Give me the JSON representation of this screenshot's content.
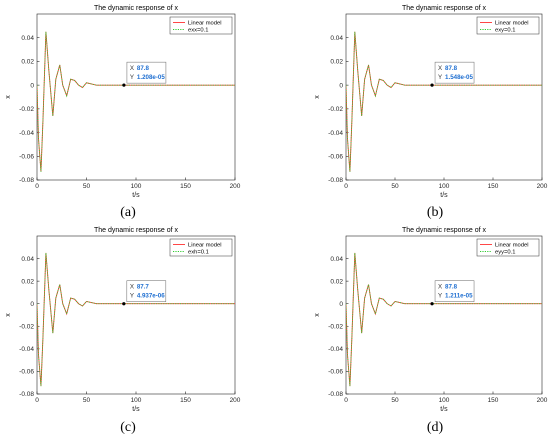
{
  "figure": {
    "background": "#ffffff",
    "axis_color": "#262626",
    "grid": false
  },
  "chart_data": [
    {
      "panel_label": "(a)",
      "type": "line",
      "title": "The dynamic response of x",
      "xlabel": "t/s",
      "ylabel": "x",
      "xlim": [
        0,
        200
      ],
      "ylim": [
        -0.08,
        0.06
      ],
      "xticks": [
        0,
        50,
        100,
        150,
        200
      ],
      "yticks": [
        -0.08,
        -0.06,
        -0.04,
        -0.02,
        0,
        0.02,
        0.04
      ],
      "xtick_labels": [
        "0",
        "50",
        "100",
        "150",
        "200"
      ],
      "ytick_labels": [
        "-0.08",
        "-0.06",
        "-0.04",
        "-0.02",
        "0",
        "0.02",
        "0.04"
      ],
      "legend": {
        "position": "top-right",
        "entries": [
          "Linear model",
          "exx=0.1"
        ]
      },
      "series": [
        {
          "name": "Linear model",
          "color": "#ff3333",
          "style": "solid",
          "x": [
            0,
            1.5,
            4,
            6,
            9,
            12,
            16,
            19,
            23,
            26,
            30,
            34,
            38,
            42,
            46,
            50,
            55,
            60,
            70,
            80,
            87.8,
            100,
            150,
            200
          ],
          "y": [
            0,
            -0.045,
            -0.073,
            -0.03,
            0.045,
            0.012,
            -0.026,
            0.005,
            0.017,
            0.0,
            -0.009,
            0.005,
            0.004,
            0.0,
            -0.002,
            0.002,
            0.001,
            0.0,
            0.0,
            0.0,
            0.0,
            0,
            0,
            0
          ]
        },
        {
          "name": "exx=0.1",
          "color": "#33cc33",
          "style": "dotted",
          "x": [
            0,
            1.5,
            4,
            6,
            9,
            12,
            16,
            19,
            23,
            26,
            30,
            34,
            38,
            42,
            46,
            50,
            55,
            60,
            70,
            80,
            87.8,
            100,
            150,
            200
          ],
          "y": [
            0,
            -0.045,
            -0.073,
            -0.03,
            0.045,
            0.012,
            -0.026,
            0.005,
            0.017,
            0.0,
            -0.009,
            0.005,
            0.004,
            0.0,
            -0.002,
            0.002,
            0.001,
            0.0,
            0.0,
            0.0,
            0.0,
            0,
            0,
            0
          ]
        }
      ],
      "datatip": {
        "x": 87.8,
        "y": 0,
        "x_label": "X",
        "x_value": "87.8",
        "y_label": "Y",
        "y_value": "1.208e-05"
      }
    },
    {
      "panel_label": "(b)",
      "type": "line",
      "title": "The dynamic response of x",
      "xlabel": "t/s",
      "ylabel": "x",
      "xlim": [
        0,
        200
      ],
      "ylim": [
        -0.08,
        0.06
      ],
      "xticks": [
        0,
        50,
        100,
        150,
        200
      ],
      "yticks": [
        -0.08,
        -0.06,
        -0.04,
        -0.02,
        0,
        0.02,
        0.04
      ],
      "xtick_labels": [
        "0",
        "50",
        "100",
        "150",
        "200"
      ],
      "ytick_labels": [
        "-0.08",
        "-0.06",
        "-0.04",
        "-0.02",
        "0",
        "0.02",
        "0.04"
      ],
      "legend": {
        "position": "top-right",
        "entries": [
          "Linear model",
          "exy=0.1"
        ]
      },
      "series": [
        {
          "name": "Linear model",
          "color": "#ff3333",
          "style": "solid",
          "x": [
            0,
            1.5,
            4,
            6,
            9,
            12,
            16,
            19,
            23,
            26,
            30,
            34,
            38,
            42,
            46,
            50,
            55,
            60,
            70,
            80,
            87.8,
            100,
            150,
            200
          ],
          "y": [
            0,
            -0.045,
            -0.073,
            -0.03,
            0.045,
            0.012,
            -0.026,
            0.005,
            0.017,
            0.0,
            -0.009,
            0.005,
            0.004,
            0.0,
            -0.002,
            0.002,
            0.001,
            0.0,
            0.0,
            0.0,
            0.0,
            0,
            0,
            0
          ]
        },
        {
          "name": "exy=0.1",
          "color": "#33cc33",
          "style": "dotted",
          "x": [
            0,
            1.5,
            4,
            6,
            9,
            12,
            16,
            19,
            23,
            26,
            30,
            34,
            38,
            42,
            46,
            50,
            55,
            60,
            70,
            80,
            87.8,
            100,
            150,
            200
          ],
          "y": [
            0,
            -0.045,
            -0.073,
            -0.03,
            0.045,
            0.012,
            -0.026,
            0.005,
            0.017,
            0.0,
            -0.009,
            0.005,
            0.004,
            0.0,
            -0.002,
            0.002,
            0.001,
            0.0,
            0.0,
            0.0,
            0.0,
            0,
            0,
            0
          ]
        }
      ],
      "datatip": {
        "x": 87.8,
        "y": 0,
        "x_label": "X",
        "x_value": "87.8",
        "y_label": "Y",
        "y_value": "1.548e-05"
      }
    },
    {
      "panel_label": "(c)",
      "type": "line",
      "title": "The dynamic response of x",
      "xlabel": "t/s",
      "ylabel": "x",
      "xlim": [
        0,
        200
      ],
      "ylim": [
        -0.08,
        0.06
      ],
      "xticks": [
        0,
        50,
        100,
        150,
        200
      ],
      "yticks": [
        -0.08,
        -0.06,
        -0.04,
        -0.02,
        0,
        0.02,
        0.04
      ],
      "xtick_labels": [
        "0",
        "50",
        "100",
        "150",
        "200"
      ],
      "ytick_labels": [
        "-0.08",
        "-0.06",
        "-0.04",
        "-0.02",
        "0",
        "0.02",
        "0.04"
      ],
      "legend": {
        "position": "top-right",
        "entries": [
          "Linear model",
          "exh=0.1"
        ]
      },
      "series": [
        {
          "name": "Linear model",
          "color": "#ff3333",
          "style": "solid",
          "x": [
            0,
            1.5,
            4,
            6,
            9,
            12,
            16,
            19,
            23,
            26,
            30,
            34,
            38,
            42,
            46,
            50,
            55,
            60,
            70,
            80,
            87.7,
            100,
            150,
            200
          ],
          "y": [
            0,
            -0.045,
            -0.073,
            -0.03,
            0.045,
            0.012,
            -0.026,
            0.005,
            0.017,
            0.0,
            -0.009,
            0.005,
            0.004,
            0.0,
            -0.002,
            0.002,
            0.001,
            0.0,
            0.0,
            0.0,
            0.0,
            0,
            0,
            0
          ]
        },
        {
          "name": "exh=0.1",
          "color": "#33cc33",
          "style": "dotted",
          "x": [
            0,
            1.5,
            4,
            6,
            9,
            12,
            16,
            19,
            23,
            26,
            30,
            34,
            38,
            42,
            46,
            50,
            55,
            60,
            70,
            80,
            87.7,
            100,
            150,
            200
          ],
          "y": [
            0,
            -0.045,
            -0.073,
            -0.03,
            0.045,
            0.012,
            -0.026,
            0.005,
            0.017,
            0.0,
            -0.009,
            0.005,
            0.004,
            0.0,
            -0.002,
            0.002,
            0.001,
            0.0,
            0.0,
            0.0,
            0.0,
            0,
            0,
            0
          ]
        }
      ],
      "datatip": {
        "x": 87.7,
        "y": 0,
        "x_label": "X",
        "x_value": "87.7",
        "y_label": "Y",
        "y_value": "4.937e-06"
      }
    },
    {
      "panel_label": "(d)",
      "type": "line",
      "title": "The dynamic response of x",
      "xlabel": "t/s",
      "ylabel": "x",
      "xlim": [
        0,
        200
      ],
      "ylim": [
        -0.08,
        0.06
      ],
      "xticks": [
        0,
        50,
        100,
        150,
        200
      ],
      "yticks": [
        -0.08,
        -0.06,
        -0.04,
        -0.02,
        0,
        0.02,
        0.04
      ],
      "xtick_labels": [
        "0",
        "50",
        "100",
        "150",
        "200"
      ],
      "ytick_labels": [
        "-0.08",
        "-0.06",
        "-0.04",
        "-0.02",
        "0",
        "0.02",
        "0.04"
      ],
      "legend": {
        "position": "top-right",
        "entries": [
          "Linear model",
          "eyy=0.1"
        ]
      },
      "series": [
        {
          "name": "Linear model",
          "color": "#ff3333",
          "style": "solid",
          "x": [
            0,
            1.5,
            4,
            6,
            9,
            12,
            16,
            19,
            23,
            26,
            30,
            34,
            38,
            42,
            46,
            50,
            55,
            60,
            70,
            80,
            87.8,
            100,
            150,
            200
          ],
          "y": [
            0,
            -0.045,
            -0.073,
            -0.03,
            0.045,
            0.012,
            -0.026,
            0.005,
            0.017,
            0.0,
            -0.009,
            0.005,
            0.004,
            0.0,
            -0.002,
            0.002,
            0.001,
            0.0,
            0.0,
            0.0,
            0.0,
            0,
            0,
            0
          ]
        },
        {
          "name": "eyy=0.1",
          "color": "#33cc33",
          "style": "dotted",
          "x": [
            0,
            1.5,
            4,
            6,
            9,
            12,
            16,
            19,
            23,
            26,
            30,
            34,
            38,
            42,
            46,
            50,
            55,
            60,
            70,
            80,
            87.8,
            100,
            150,
            200
          ],
          "y": [
            0,
            -0.045,
            -0.073,
            -0.03,
            0.045,
            0.012,
            -0.026,
            0.005,
            0.017,
            0.0,
            -0.009,
            0.005,
            0.004,
            0.0,
            -0.002,
            0.002,
            0.001,
            0.0,
            0.0,
            0.0,
            0.0,
            0,
            0,
            0
          ]
        }
      ],
      "datatip": {
        "x": 87.8,
        "y": 0,
        "x_label": "X",
        "x_value": "87.8",
        "y_label": "Y",
        "y_value": "1.211e-05"
      }
    }
  ]
}
